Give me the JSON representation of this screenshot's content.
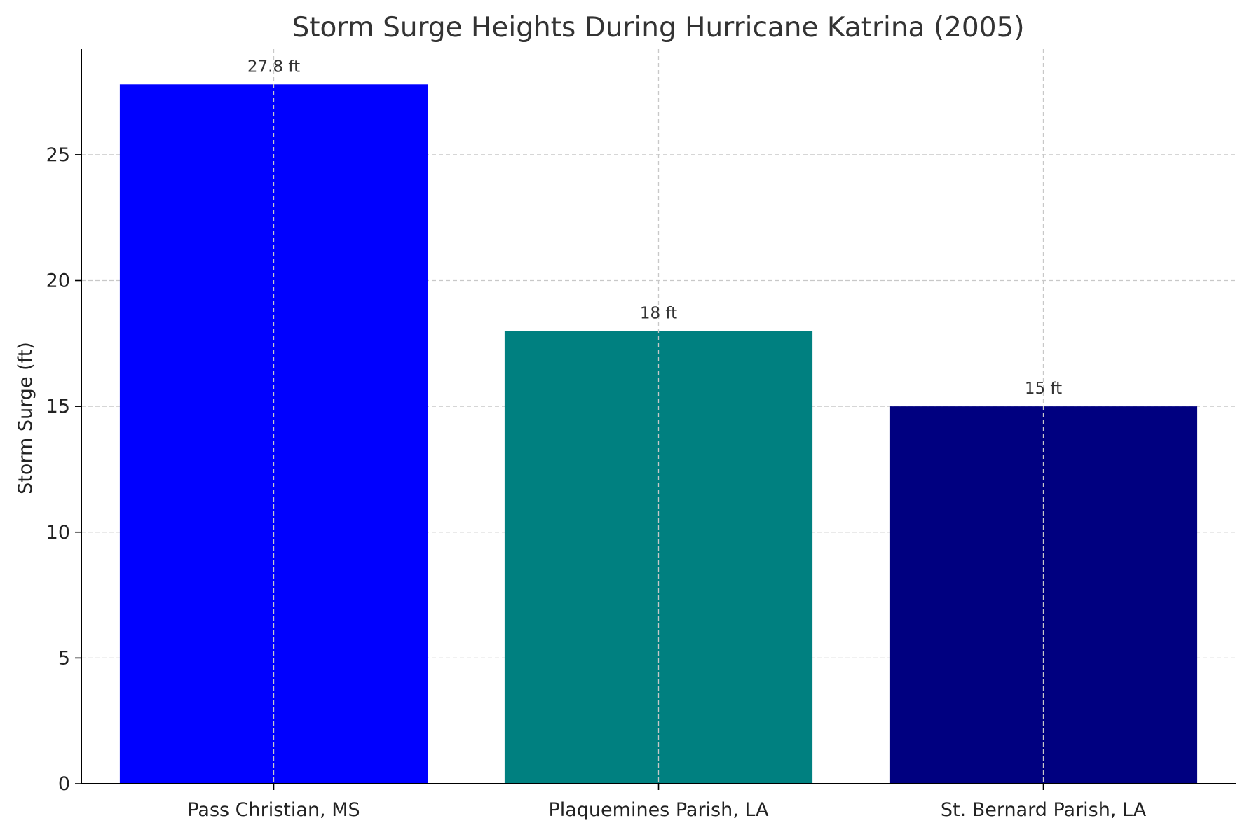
{
  "chart_data": {
    "type": "bar",
    "title": "Storm Surge Heights During Hurricane Katrina (2005)",
    "xlabel": "",
    "ylabel": "Storm Surge (ft)",
    "categories": [
      "Pass Christian, MS",
      "Plaquemines Parish, LA",
      "St. Bernard Parish, LA"
    ],
    "values": [
      27.8,
      18,
      15
    ],
    "data_labels": [
      "27.8 ft",
      "18 ft",
      "15 ft"
    ],
    "colors": [
      "#0000ff",
      "#008080",
      "#000080"
    ],
    "ylim": [
      0,
      29.2
    ],
    "yticks": [
      0,
      5,
      10,
      15,
      20,
      25
    ],
    "grid": true
  }
}
